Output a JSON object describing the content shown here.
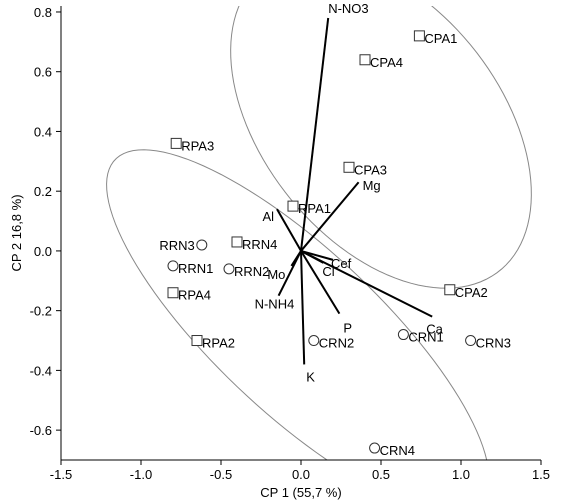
{
  "chart_data": {
    "type": "scatter",
    "title": "",
    "xlabel": "CP 1 (55,7 %)",
    "ylabel": "CP 2 16,8 %)",
    "xlim": [
      -1.5,
      1.5
    ],
    "ylim": [
      -0.7,
      0.82
    ],
    "xticks": [
      -1.5,
      -1.0,
      -0.5,
      0.0,
      0.5,
      1.0,
      1.5
    ],
    "xtick_labels": [
      "-1.5",
      "-1.0",
      "-0.5",
      "0.0",
      "0.5",
      "1.0",
      "1.5"
    ],
    "yticks": [
      -0.6,
      -0.4,
      -0.2,
      0.0,
      0.2,
      0.4,
      0.6,
      0.8
    ],
    "ytick_labels": [
      "-0.6",
      "-0.4",
      "-0.2",
      "0.0",
      "0.2",
      "0.4",
      "0.6",
      "0.8"
    ],
    "grid": false,
    "points": [
      {
        "label": "CPA1",
        "x": 0.74,
        "y": 0.72,
        "marker": "square"
      },
      {
        "label": "CPA4",
        "x": 0.4,
        "y": 0.64,
        "marker": "square"
      },
      {
        "label": "RPA3",
        "x": -0.78,
        "y": 0.36,
        "marker": "square"
      },
      {
        "label": "CPA3",
        "x": 0.3,
        "y": 0.28,
        "marker": "square"
      },
      {
        "label": "RPA1",
        "x": -0.05,
        "y": 0.15,
        "marker": "square"
      },
      {
        "label": "RRN4",
        "x": -0.4,
        "y": 0.03,
        "marker": "square"
      },
      {
        "label": "RRN3",
        "x": -0.62,
        "y": 0.02,
        "marker": "circle"
      },
      {
        "label": "RRN1",
        "x": -0.8,
        "y": -0.05,
        "marker": "circle"
      },
      {
        "label": "RRN2",
        "x": -0.45,
        "y": -0.06,
        "marker": "circle"
      },
      {
        "label": "RPA4",
        "x": -0.8,
        "y": -0.14,
        "marker": "square"
      },
      {
        "label": "CPA2",
        "x": 0.93,
        "y": -0.13,
        "marker": "square"
      },
      {
        "label": "RPA2",
        "x": -0.65,
        "y": -0.3,
        "marker": "square"
      },
      {
        "label": "CRN1",
        "x": 0.64,
        "y": -0.28,
        "marker": "circle"
      },
      {
        "label": "CRN3",
        "x": 1.06,
        "y": -0.3,
        "marker": "circle"
      },
      {
        "label": "CRN2",
        "x": 0.08,
        "y": -0.3,
        "marker": "circle"
      },
      {
        "label": "CRN4",
        "x": 0.46,
        "y": -0.66,
        "marker": "circle"
      }
    ],
    "vectors": [
      {
        "label": "N-NO3",
        "x": 0.17,
        "y": 0.78
      },
      {
        "label": "Mg",
        "x": 0.36,
        "y": 0.23
      },
      {
        "label": "Al",
        "x": -0.15,
        "y": 0.14
      },
      {
        "label": "Mo",
        "x": -0.06,
        "y": -0.05
      },
      {
        "label": "Cl",
        "x": 0.14,
        "y": -0.04
      },
      {
        "label": "Cef",
        "x": 0.2,
        "y": -0.03
      },
      {
        "label": "Ca",
        "x": 0.82,
        "y": -0.22
      },
      {
        "label": "N-NH4",
        "x": -0.14,
        "y": -0.15
      },
      {
        "label": "P",
        "x": 0.24,
        "y": -0.21
      },
      {
        "label": "K",
        "x": 0.02,
        "y": -0.38
      }
    ],
    "ellipses": [
      {
        "cx": 0.5,
        "cy": 0.43,
        "rx": 0.98,
        "ry": 0.48,
        "angle_deg": -19
      },
      {
        "cx": -0.02,
        "cy": -0.27,
        "rx": 1.3,
        "ry": 0.33,
        "angle_deg": -24
      }
    ]
  }
}
